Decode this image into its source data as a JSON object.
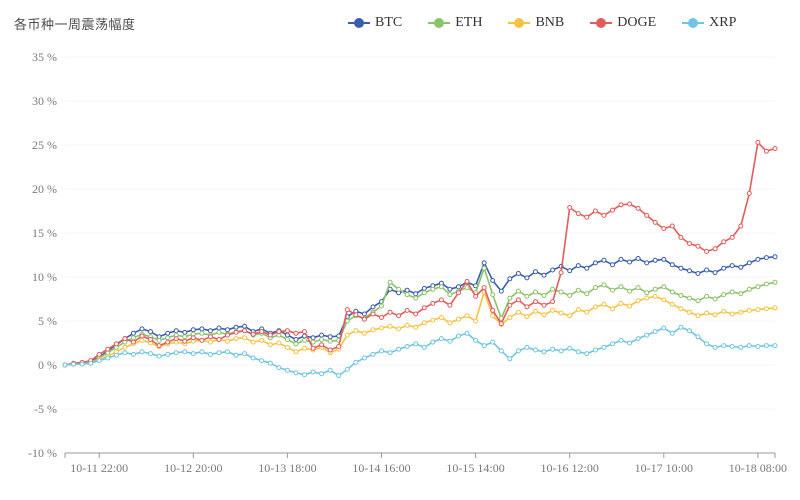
{
  "chart_data": {
    "type": "line",
    "title": "各币种一周震荡幅度",
    "legend_position": "top-right",
    "n_points": 84,
    "x_tick_labels": [
      "10-11 22:00",
      "10-12 20:00",
      "10-13 18:00",
      "10-14 16:00",
      "10-15 14:00",
      "10-16 12:00",
      "10-17 10:00",
      "10-18 08:00"
    ],
    "x_tick_indices": [
      4,
      15,
      26,
      37,
      48,
      59,
      70,
      81
    ],
    "ylim": [
      -10,
      35
    ],
    "y_tick_values": [
      -10,
      -5,
      0,
      5,
      10,
      15,
      20,
      25,
      30,
      35
    ],
    "y_tick_suffix": " %",
    "grid": false,
    "axis_color": "#999999",
    "label_color": "#7a7a7a",
    "series": [
      {
        "name": "BTC",
        "color": "#3b5eab",
        "values": [
          0.0,
          0.1,
          0.2,
          0.4,
          0.9,
          1.6,
          2.3,
          3.0,
          3.6,
          4.1,
          3.8,
          3.2,
          3.6,
          3.9,
          3.7,
          4.0,
          4.1,
          3.9,
          4.2,
          4.0,
          4.3,
          4.4,
          3.8,
          4.1,
          3.6,
          3.9,
          3.4,
          2.9,
          3.3,
          3.1,
          3.4,
          3.2,
          3.3,
          5.5,
          6.1,
          5.8,
          6.6,
          7.2,
          8.6,
          8.2,
          8.5,
          8.1,
          8.7,
          9.0,
          9.3,
          8.6,
          8.9,
          9.4,
          9.0,
          11.6,
          9.6,
          8.4,
          9.8,
          10.4,
          9.9,
          10.6,
          10.2,
          10.8,
          11.2,
          10.7,
          11.3,
          11.0,
          11.6,
          11.9,
          11.4,
          12.0,
          11.7,
          12.1,
          11.6,
          11.9,
          12.0,
          11.4,
          11.0,
          10.7,
          10.4,
          10.8,
          10.5,
          11.0,
          11.3,
          11.1,
          11.6,
          12.0,
          12.2,
          12.3
        ]
      },
      {
        "name": "ETH",
        "color": "#8cc269",
        "values": [
          0.0,
          0.1,
          0.2,
          0.3,
          0.8,
          1.4,
          2.0,
          2.6,
          3.1,
          3.5,
          3.2,
          2.8,
          3.1,
          3.4,
          3.2,
          3.5,
          3.6,
          3.4,
          3.7,
          3.5,
          3.8,
          3.9,
          3.4,
          3.6,
          3.1,
          3.4,
          2.9,
          2.4,
          2.8,
          2.6,
          2.9,
          2.7,
          2.8,
          5.0,
          5.6,
          5.3,
          6.0,
          6.7,
          9.4,
          8.6,
          8.0,
          7.6,
          8.2,
          8.6,
          8.9,
          8.0,
          8.4,
          8.8,
          8.2,
          11.0,
          8.0,
          5.3,
          7.6,
          8.4,
          7.8,
          8.3,
          7.9,
          8.6,
          8.3,
          7.9,
          8.5,
          8.1,
          8.8,
          9.1,
          8.5,
          8.9,
          8.4,
          8.8,
          8.2,
          8.6,
          8.9,
          8.3,
          7.9,
          7.6,
          7.3,
          7.8,
          7.5,
          8.0,
          8.3,
          8.1,
          8.6,
          8.9,
          9.2,
          9.4
        ]
      },
      {
        "name": "BNB",
        "color": "#f5c342",
        "values": [
          0.0,
          0.1,
          0.1,
          0.2,
          0.6,
          1.0,
          1.5,
          2.0,
          2.4,
          2.8,
          2.5,
          2.1,
          2.4,
          2.6,
          2.4,
          2.7,
          2.8,
          2.6,
          2.9,
          2.7,
          3.0,
          3.1,
          2.6,
          2.8,
          2.3,
          2.5,
          2.0,
          1.5,
          1.9,
          1.7,
          2.0,
          1.4,
          1.8,
          3.4,
          3.9,
          3.6,
          4.0,
          4.2,
          4.4,
          4.1,
          4.5,
          4.3,
          4.8,
          5.1,
          5.4,
          4.8,
          5.2,
          5.6,
          5.0,
          8.3,
          5.6,
          4.6,
          5.4,
          6.0,
          5.5,
          6.1,
          5.7,
          6.2,
          5.9,
          5.6,
          6.3,
          6.0,
          6.6,
          6.9,
          6.4,
          7.0,
          6.7,
          7.3,
          7.6,
          7.8,
          7.4,
          6.9,
          6.4,
          6.0,
          5.6,
          5.9,
          5.7,
          6.1,
          5.8,
          6.0,
          6.2,
          6.3,
          6.4,
          6.5
        ]
      },
      {
        "name": "DOGE",
        "color": "#e35c5c",
        "values": [
          0.0,
          0.2,
          0.3,
          0.5,
          1.2,
          1.8,
          2.4,
          3.0,
          2.6,
          3.3,
          2.9,
          2.2,
          2.6,
          3.0,
          2.7,
          3.1,
          2.8,
          3.2,
          2.9,
          3.4,
          3.7,
          3.9,
          3.5,
          3.8,
          3.4,
          3.8,
          3.9,
          3.6,
          3.8,
          1.9,
          2.3,
          1.7,
          2.1,
          6.3,
          5.7,
          5.2,
          5.8,
          5.4,
          6.0,
          5.6,
          6.2,
          5.8,
          6.5,
          7.0,
          7.4,
          6.8,
          8.2,
          9.5,
          7.8,
          8.8,
          6.2,
          4.7,
          6.8,
          7.4,
          6.6,
          7.2,
          6.8,
          7.2,
          10.5,
          17.9,
          17.2,
          16.8,
          17.5,
          17.0,
          17.6,
          18.2,
          18.3,
          17.8,
          17.0,
          16.2,
          15.5,
          15.8,
          14.5,
          13.8,
          13.5,
          12.9,
          13.2,
          14.0,
          14.5,
          15.8,
          19.5,
          25.3,
          24.3,
          24.6
        ]
      },
      {
        "name": "XRP",
        "color": "#70c5e2",
        "values": [
          0.0,
          0.1,
          0.1,
          0.2,
          0.5,
          0.8,
          1.1,
          1.4,
          1.2,
          1.5,
          1.3,
          1.0,
          1.2,
          1.4,
          1.5,
          1.3,
          1.5,
          1.2,
          1.4,
          1.5,
          1.1,
          1.3,
          0.8,
          0.5,
          0.2,
          -0.3,
          -0.6,
          -0.9,
          -1.1,
          -0.8,
          -1.0,
          -0.6,
          -1.2,
          -0.5,
          0.3,
          0.8,
          1.2,
          1.6,
          1.4,
          1.8,
          2.1,
          2.4,
          2.0,
          2.6,
          3.0,
          2.7,
          3.3,
          3.6,
          2.8,
          2.2,
          2.6,
          1.6,
          0.7,
          1.6,
          2.0,
          1.7,
          1.5,
          1.8,
          1.6,
          1.9,
          1.5,
          1.3,
          1.7,
          2.0,
          2.4,
          2.8,
          2.5,
          3.0,
          3.4,
          3.8,
          4.2,
          3.6,
          4.3,
          3.9,
          3.2,
          2.4,
          2.0,
          2.2,
          2.1,
          2.0,
          2.2,
          2.1,
          2.2,
          2.2
        ]
      }
    ]
  }
}
